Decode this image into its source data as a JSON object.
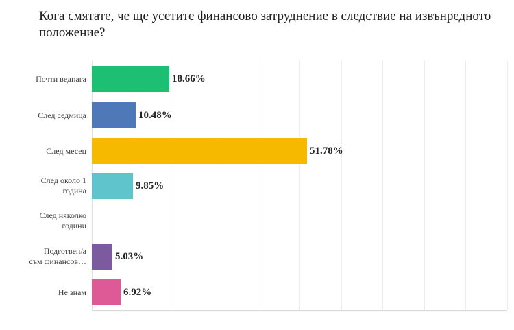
{
  "title": "Кога смятате, че ще усетите финансово затруднение в следствие на извънредното положение?",
  "chart_data": {
    "type": "bar",
    "orientation": "horizontal",
    "title": "Кога смятате, че ще усетите финансово затруднение в следствие на извънредното положение?",
    "xlabel": "",
    "ylabel": "",
    "xlim": [
      0,
      100
    ],
    "grid": true,
    "legend": null,
    "categories": [
      "Почти веднага",
      "След седмица",
      "След месец",
      "След около 1 година",
      "След няколко години",
      "Подготвен/а съм финансов…",
      "Не знам"
    ],
    "values": [
      18.66,
      10.48,
      51.78,
      9.85,
      0,
      5.03,
      6.92
    ],
    "value_labels": [
      "18.66%",
      "10.48%",
      "51.78%",
      "9.85%",
      "",
      "5.03%",
      "6.92%"
    ],
    "colors": [
      "#1dbf73",
      "#4f78b8",
      "#f7b900",
      "#5fc4cc",
      "#ffffff",
      "#7b5aa0",
      "#de5a97"
    ]
  },
  "rows": [
    {
      "label_lines": [
        "Почти веднага"
      ],
      "value": 18.66,
      "value_label": "18.66%",
      "color": "#1dbf73"
    },
    {
      "label_lines": [
        "След седмица"
      ],
      "value": 10.48,
      "value_label": "10.48%",
      "color": "#4f78b8"
    },
    {
      "label_lines": [
        "След месец"
      ],
      "value": 51.78,
      "value_label": "51.78%",
      "color": "#f7b900"
    },
    {
      "label_lines": [
        "След около 1",
        "година"
      ],
      "value": 9.85,
      "value_label": "9.85%",
      "color": "#5fc4cc"
    },
    {
      "label_lines": [
        "След няколко",
        "години"
      ],
      "value": 0,
      "value_label": "",
      "color": "#ffffff"
    },
    {
      "label_lines": [
        "Подготвен/а",
        "съм финансов…"
      ],
      "value": 5.03,
      "value_label": "5.03%",
      "color": "#7b5aa0"
    },
    {
      "label_lines": [
        "Не знам"
      ],
      "value": 6.92,
      "value_label": "6.92%",
      "color": "#de5a97"
    }
  ]
}
